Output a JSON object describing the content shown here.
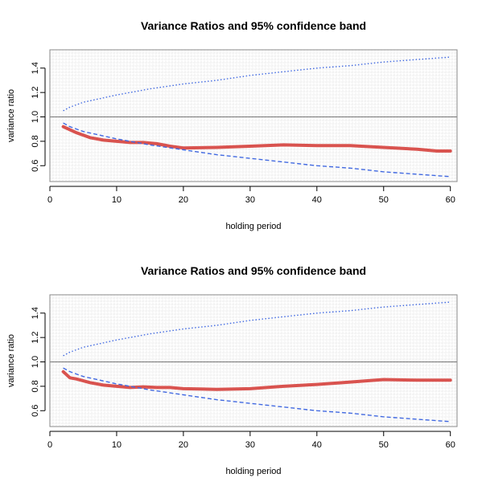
{
  "chart_data": [
    {
      "type": "line",
      "title": "Variance Ratios and 95% confidence band",
      "xlabel": "holding period",
      "ylabel": "variance ratio",
      "xlim": [
        0,
        61
      ],
      "ylim": [
        0.47,
        1.55
      ],
      "xticks": [
        0,
        10,
        20,
        30,
        40,
        50,
        60
      ],
      "yticks": [
        0.6,
        0.8,
        1.0,
        1.2,
        1.4
      ],
      "xtick_labels": [
        "0",
        "10",
        "20",
        "30",
        "40",
        "50",
        "60"
      ],
      "ytick_labels": [
        "0.6",
        "0.8",
        "1.0",
        "1.2",
        "1.4"
      ],
      "reference_line": 1.0,
      "grid": true,
      "series": [
        {
          "role": "variance-ratio",
          "color": "#d9534f",
          "style": "solid",
          "x": [
            2,
            4,
            6,
            8,
            10,
            12,
            14,
            16,
            18,
            20,
            25,
            30,
            35,
            40,
            45,
            50,
            55,
            58,
            60
          ],
          "y": [
            0.92,
            0.87,
            0.83,
            0.81,
            0.8,
            0.79,
            0.79,
            0.78,
            0.76,
            0.745,
            0.75,
            0.76,
            0.77,
            0.765,
            0.765,
            0.75,
            0.735,
            0.72,
            0.72
          ]
        },
        {
          "role": "upper-band",
          "color": "#4169e1",
          "style": "dotted",
          "x": [
            2,
            3,
            5,
            10,
            15,
            20,
            25,
            30,
            35,
            40,
            45,
            50,
            55,
            60
          ],
          "y": [
            1.05,
            1.08,
            1.12,
            1.18,
            1.23,
            1.27,
            1.3,
            1.34,
            1.37,
            1.4,
            1.42,
            1.45,
            1.47,
            1.49
          ]
        },
        {
          "role": "lower-band",
          "color": "#4169e1",
          "style": "dashed",
          "x": [
            2,
            3,
            5,
            10,
            15,
            20,
            25,
            30,
            35,
            40,
            45,
            50,
            55,
            60
          ],
          "y": [
            0.95,
            0.92,
            0.88,
            0.82,
            0.77,
            0.73,
            0.69,
            0.66,
            0.63,
            0.6,
            0.58,
            0.55,
            0.53,
            0.51
          ]
        }
      ]
    },
    {
      "type": "line",
      "title": "Variance Ratios and 95% confidence band",
      "xlabel": "holding period",
      "ylabel": "variance ratio",
      "xlim": [
        0,
        61
      ],
      "ylim": [
        0.47,
        1.55
      ],
      "xticks": [
        0,
        10,
        20,
        30,
        40,
        50,
        60
      ],
      "yticks": [
        0.6,
        0.8,
        1.0,
        1.2,
        1.4
      ],
      "xtick_labels": [
        "0",
        "10",
        "20",
        "30",
        "40",
        "50",
        "60"
      ],
      "ytick_labels": [
        "0.6",
        "0.8",
        "1.0",
        "1.2",
        "1.4"
      ],
      "reference_line": 1.0,
      "grid": true,
      "series": [
        {
          "role": "variance-ratio",
          "color": "#d9534f",
          "style": "solid",
          "x": [
            2,
            3,
            4,
            6,
            8,
            10,
            12,
            14,
            16,
            18,
            20,
            25,
            30,
            35,
            40,
            45,
            50,
            55,
            60
          ],
          "y": [
            0.92,
            0.87,
            0.86,
            0.83,
            0.81,
            0.8,
            0.79,
            0.795,
            0.79,
            0.79,
            0.78,
            0.775,
            0.78,
            0.8,
            0.815,
            0.835,
            0.855,
            0.85,
            0.85
          ]
        },
        {
          "role": "upper-band",
          "color": "#4169e1",
          "style": "dotted",
          "x": [
            2,
            3,
            5,
            10,
            15,
            20,
            25,
            30,
            35,
            40,
            45,
            50,
            55,
            60
          ],
          "y": [
            1.05,
            1.08,
            1.12,
            1.18,
            1.23,
            1.27,
            1.3,
            1.34,
            1.37,
            1.4,
            1.42,
            1.45,
            1.47,
            1.49
          ]
        },
        {
          "role": "lower-band",
          "color": "#4169e1",
          "style": "dashed",
          "x": [
            2,
            3,
            5,
            10,
            15,
            20,
            25,
            30,
            35,
            40,
            45,
            50,
            55,
            60
          ],
          "y": [
            0.95,
            0.92,
            0.88,
            0.82,
            0.77,
            0.73,
            0.69,
            0.66,
            0.63,
            0.6,
            0.58,
            0.55,
            0.53,
            0.51
          ]
        }
      ]
    }
  ]
}
